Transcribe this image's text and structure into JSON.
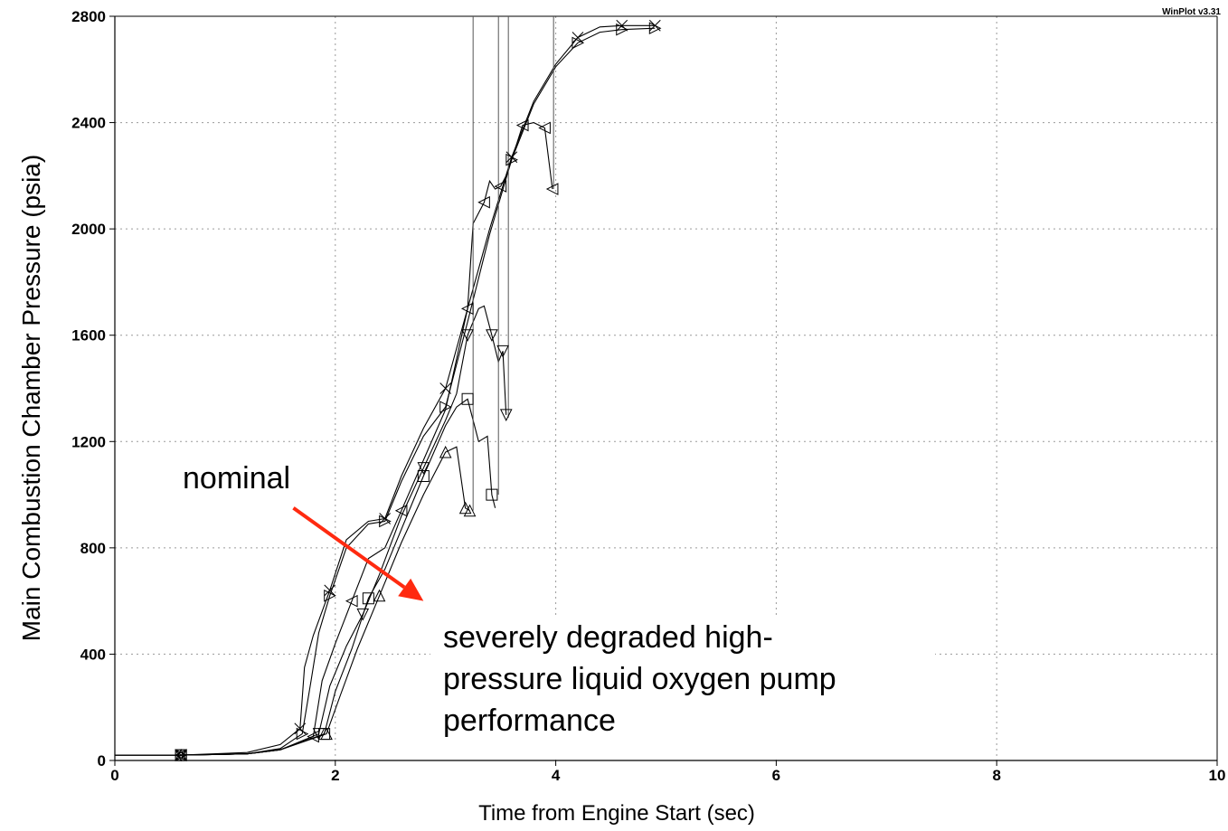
{
  "chart_data": {
    "type": "line",
    "xlabel": "Time from Engine Start (sec)",
    "ylabel": "Main Combustion Chamber Pressure (psia)",
    "xlim": [
      0,
      10
    ],
    "ylim": [
      0,
      2800
    ],
    "xticks": [
      0,
      2,
      4,
      6,
      8,
      10
    ],
    "yticks": [
      0,
      400,
      800,
      1200,
      1600,
      2000,
      2400,
      2800
    ],
    "grid": true,
    "watermark": "WinPlot v3.31",
    "series": [
      {
        "marker": "x",
        "x": [
          0,
          0.6,
          1.2,
          1.5,
          1.68,
          1.72,
          1.8,
          1.95,
          2.1,
          2.3,
          2.45,
          2.6,
          2.8,
          3.0,
          3.2,
          3.4,
          3.6,
          3.8,
          4.0,
          4.2,
          4.4,
          4.6,
          4.9
        ],
        "y": [
          20,
          20,
          30,
          60,
          120,
          350,
          470,
          640,
          830,
          900,
          910,
          1070,
          1250,
          1400,
          1700,
          2000,
          2270,
          2480,
          2620,
          2720,
          2760,
          2765,
          2765
        ]
      },
      {
        "marker": "triangle-right",
        "x": [
          0,
          0.6,
          1.2,
          1.5,
          1.7,
          1.78,
          1.85,
          1.95,
          2.1,
          2.3,
          2.45,
          2.6,
          2.8,
          3.0,
          3.2,
          3.4,
          3.6,
          3.8,
          4.0,
          4.2,
          4.4,
          4.6,
          4.9
        ],
        "y": [
          20,
          20,
          25,
          45,
          100,
          300,
          480,
          620,
          800,
          890,
          900,
          1050,
          1220,
          1330,
          1650,
          1980,
          2260,
          2470,
          2610,
          2700,
          2740,
          2750,
          2755
        ]
      },
      {
        "marker": "triangle-left",
        "x": [
          0,
          0.6,
          1.2,
          1.5,
          1.8,
          1.88,
          2.0,
          2.15,
          2.3,
          2.45,
          2.6,
          2.8,
          3.0,
          3.2,
          3.25,
          3.3,
          3.35,
          3.4,
          3.45,
          3.5,
          3.55,
          3.6,
          3.7,
          3.8,
          3.9,
          3.97
        ],
        "y": [
          20,
          20,
          25,
          40,
          90,
          300,
          440,
          600,
          760,
          800,
          940,
          1130,
          1320,
          1700,
          2020,
          2060,
          2100,
          2180,
          2150,
          2160,
          2200,
          2260,
          2390,
          2400,
          2380,
          2150
        ]
      },
      {
        "marker": "triangle-down",
        "x": [
          0,
          0.6,
          1.2,
          1.5,
          1.85,
          1.95,
          2.1,
          2.25,
          2.4,
          2.6,
          2.8,
          3.0,
          3.1,
          3.2,
          3.3,
          3.35,
          3.42,
          3.48,
          3.52,
          3.55
        ],
        "y": [
          20,
          20,
          25,
          40,
          100,
          280,
          430,
          550,
          700,
          920,
          1100,
          1280,
          1380,
          1600,
          1700,
          1710,
          1600,
          1500,
          1540,
          1300
        ]
      },
      {
        "marker": "square",
        "x": [
          0,
          0.6,
          1.2,
          1.5,
          1.9,
          2.0,
          2.15,
          2.3,
          2.45,
          2.6,
          2.8,
          3.0,
          3.1,
          3.2,
          3.3,
          3.38,
          3.42,
          3.45
        ],
        "y": [
          20,
          20,
          25,
          40,
          100,
          260,
          420,
          610,
          720,
          870,
          1070,
          1260,
          1330,
          1360,
          1200,
          1220,
          1000,
          950
        ]
      },
      {
        "marker": "triangle-up",
        "x": [
          0,
          0.6,
          1.2,
          1.5,
          1.92,
          2.05,
          2.2,
          2.4,
          2.6,
          2.8,
          3.0,
          3.1,
          3.18,
          3.22
        ],
        "y": [
          20,
          20,
          25,
          40,
          100,
          250,
          420,
          620,
          820,
          1000,
          1160,
          1180,
          950,
          940
        ]
      }
    ],
    "spikes": [
      {
        "x": 3.25,
        "y_from": 940,
        "y_to": 2800
      },
      {
        "x": 3.48,
        "y_from": 1000,
        "y_to": 2800
      },
      {
        "x": 3.57,
        "y_from": 1290,
        "y_to": 2800
      },
      {
        "x": 3.98,
        "y_from": 2150,
        "y_to": 2800
      }
    ],
    "annotations": [
      {
        "text": "nominal"
      },
      {
        "text": "severely degraded high-"
      },
      {
        "text": "pressure liquid oxygen pump"
      },
      {
        "text": "performance"
      }
    ],
    "arrow": {
      "from": [
        1.62,
        950
      ],
      "to": [
        2.8,
        600
      ],
      "color": "#ff2a10"
    }
  }
}
